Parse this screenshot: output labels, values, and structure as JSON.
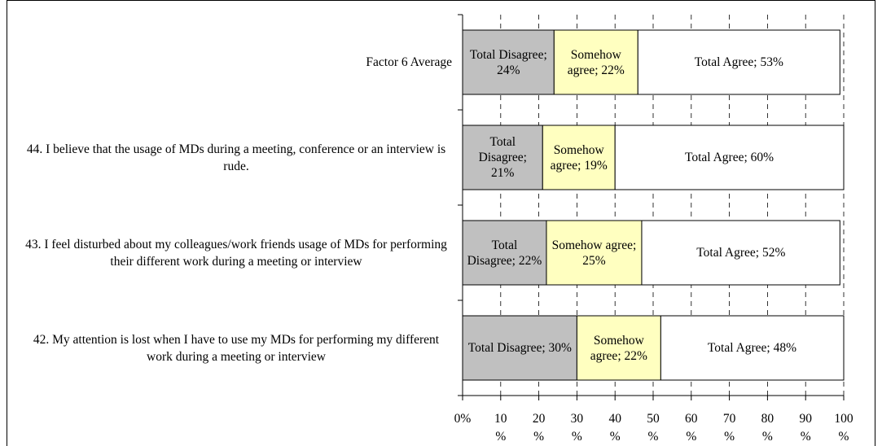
{
  "chart_data": {
    "type": "stacked-bar-horizontal",
    "categories": [
      "Factor 6 Average",
      "44.  I believe that the usage of MDs during a meeting, conference or an interview is rude.",
      "43.  I feel disturbed about my colleagues/work friends usage of MDs for performing their different work during a meeting or interview",
      "42.  My attention is lost when I have to use my MDs for performing my different work during a meeting or interview"
    ],
    "series": [
      {
        "color": "#c0c0c0",
        "values": [
          24,
          21,
          22,
          30
        ],
        "value_labels": [
          "Total Disagree; 24%",
          "Total Disagree; 21%",
          "Total Disagree; 22%",
          "Total Disagree; 30%"
        ]
      },
      {
        "color": "#ffffc0",
        "values": [
          22,
          19,
          25,
          22
        ],
        "value_labels": [
          "Somehow agree; 22%",
          "Somehow agree; 19%",
          "Somehow agree; 25%",
          "Somehow agree; 22%"
        ]
      },
      {
        "color": "#ffffff",
        "values": [
          53,
          60,
          52,
          48
        ],
        "value_labels": [
          "Total Agree; 53%",
          "Total Agree; 60%",
          "Total Agree; 52%",
          "Total Agree; 48%"
        ]
      }
    ],
    "xlim": [
      0,
      100
    ],
    "xticks": [
      {
        "value": 0,
        "label": "0%"
      },
      {
        "value": 10,
        "label": "10 %"
      },
      {
        "value": 20,
        "label": "20 %"
      },
      {
        "value": 30,
        "label": "30 %"
      },
      {
        "value": 40,
        "label": "40 %"
      },
      {
        "value": 50,
        "label": "50 %"
      },
      {
        "value": 60,
        "label": "60 %"
      },
      {
        "value": 70,
        "label": "70 %"
      },
      {
        "value": 80,
        "label": "80 %"
      },
      {
        "value": 90,
        "label": "90 %"
      },
      {
        "value": 100,
        "label": "100 %"
      }
    ],
    "grid": true
  }
}
